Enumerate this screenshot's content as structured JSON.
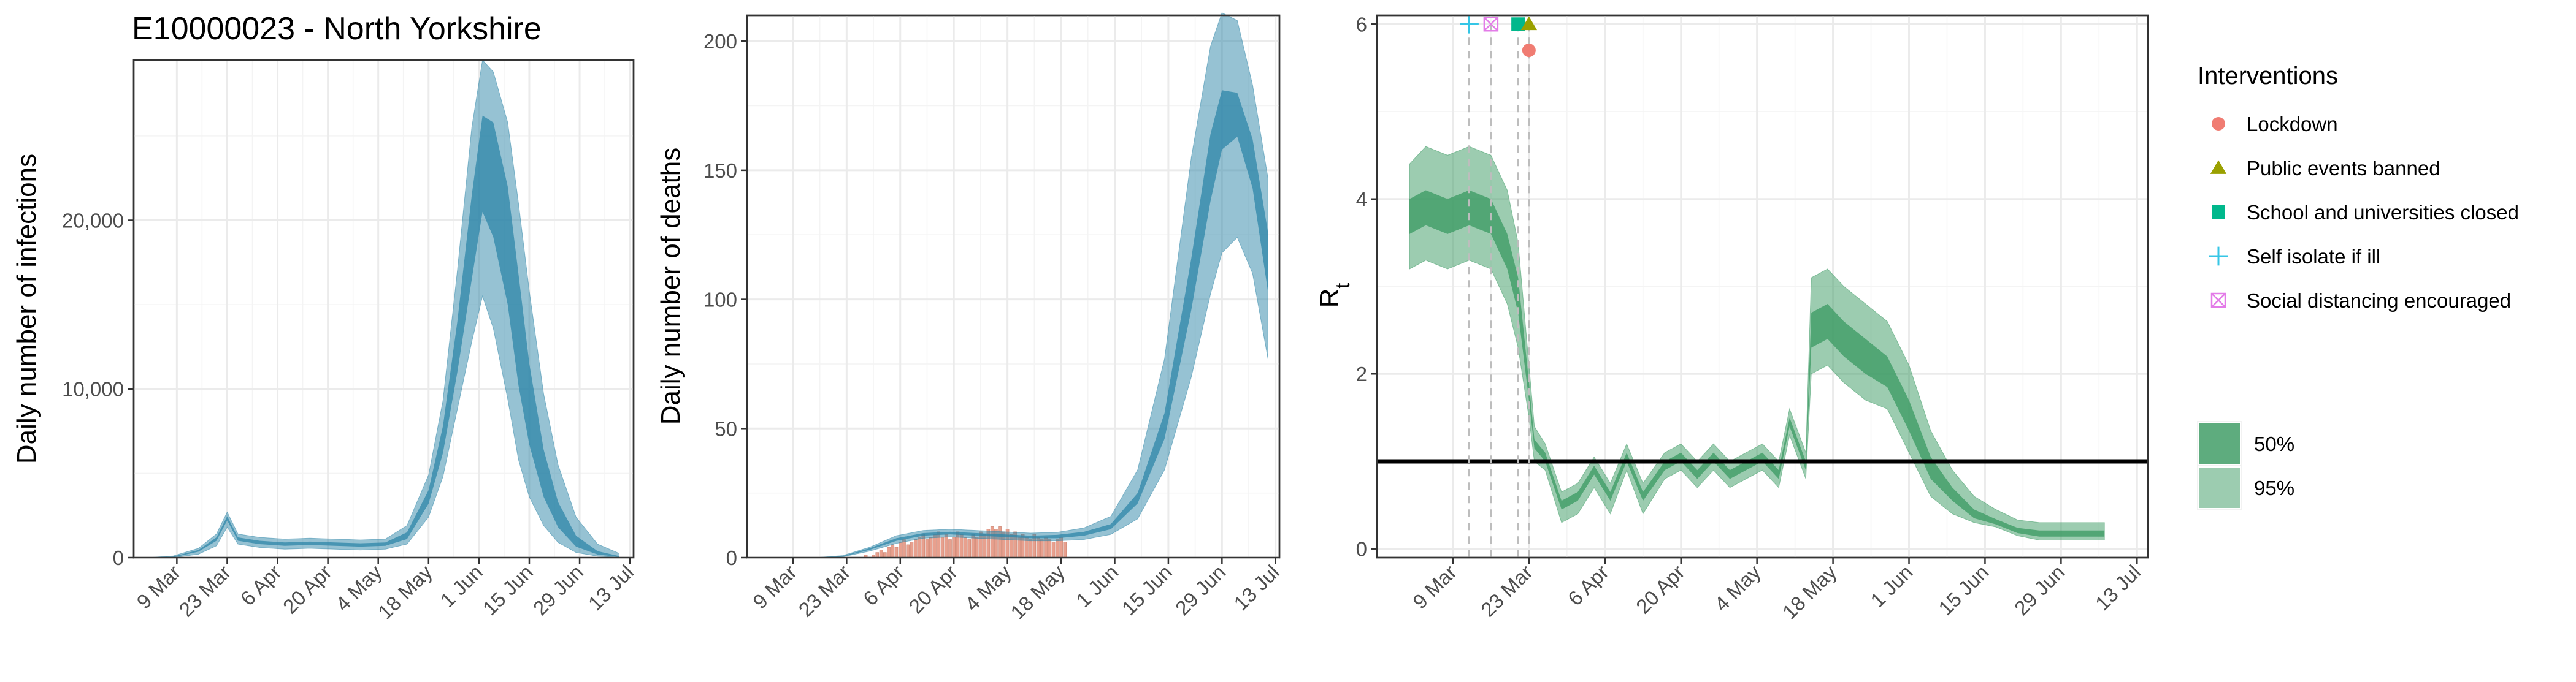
{
  "title": "E10000023 - North Yorkshire",
  "colors": {
    "infection_band": "#2e86a8",
    "rt_band": "#3a9a62",
    "reported_deaths": "#e8a08e",
    "threshold_line": "#000000",
    "marker_lockdown": "#f07c72",
    "marker_public_events": "#9aa000",
    "marker_school": "#00b88c",
    "marker_self_isolate": "#35c6e6",
    "marker_social_distancing": "#e37ce8"
  },
  "chart_data": [
    {
      "id": "infections",
      "type": "area",
      "title": "E10000023 - North Yorkshire",
      "xlabel": "",
      "ylabel": "Daily number of infections",
      "x_tick_labels": [
        "9 Mar",
        "23 Mar",
        "6 Apr",
        "20 Apr",
        "4 May",
        "18 May",
        "1 Jun",
        "15 Jun",
        "29 Jun",
        "13 Jul"
      ],
      "x_tick_dates": [
        "2020-03-09",
        "2020-03-23",
        "2020-04-06",
        "2020-04-20",
        "2020-05-04",
        "2020-05-18",
        "2020-06-01",
        "2020-06-15",
        "2020-06-29",
        "2020-07-13"
      ],
      "xlim": [
        "2020-02-26",
        "2020-07-14"
      ],
      "y_tick_labels": [
        "0",
        "10,000",
        "20,000"
      ],
      "y_tick_values": [
        0,
        10000,
        20000
      ],
      "ylim": [
        0,
        29500
      ],
      "grid": true,
      "series": [
        {
          "bands": [
            "50%",
            "95%"
          ],
          "x": [
            "2020-03-01",
            "2020-03-08",
            "2020-03-15",
            "2020-03-20",
            "2020-03-23",
            "2020-03-26",
            "2020-04-01",
            "2020-04-08",
            "2020-04-15",
            "2020-04-22",
            "2020-04-29",
            "2020-05-06",
            "2020-05-12",
            "2020-05-18",
            "2020-05-22",
            "2020-05-26",
            "2020-05-30",
            "2020-06-02",
            "2020-06-05",
            "2020-06-09",
            "2020-06-12",
            "2020-06-15",
            "2020-06-19",
            "2020-06-23",
            "2020-06-28",
            "2020-07-04",
            "2020-07-10"
          ],
          "lower95": [
            0,
            0,
            200,
            700,
            1800,
            800,
            600,
            500,
            550,
            500,
            450,
            500,
            800,
            2400,
            4800,
            8800,
            12800,
            15500,
            13600,
            9400,
            5800,
            3600,
            1900,
            900,
            300,
            80,
            20
          ],
          "lower50": [
            0,
            20,
            350,
            1000,
            2200,
            1000,
            800,
            700,
            750,
            700,
            650,
            700,
            1100,
            3200,
            6200,
            11000,
            16500,
            20500,
            19000,
            15000,
            10200,
            6700,
            3600,
            1800,
            650,
            180,
            40
          ],
          "median": [
            0,
            40,
            400,
            1100,
            2300,
            1100,
            900,
            800,
            850,
            800,
            750,
            800,
            1300,
            3600,
            7000,
            12500,
            19000,
            23500,
            22500,
            18500,
            13200,
            8800,
            4800,
            2400,
            900,
            250,
            60
          ],
          "upper50": [
            0,
            60,
            450,
            1200,
            2450,
            1200,
            1000,
            900,
            950,
            900,
            850,
            900,
            1500,
            4000,
            7800,
            14000,
            21500,
            26200,
            25800,
            22000,
            16800,
            11500,
            6400,
            3300,
            1300,
            380,
            90
          ],
          "upper95": [
            0,
            100,
            550,
            1400,
            2700,
            1400,
            1200,
            1100,
            1150,
            1100,
            1050,
            1100,
            1900,
            4900,
            9300,
            17000,
            25500,
            29500,
            28800,
            25800,
            21000,
            15800,
            9700,
            5500,
            2400,
            800,
            250
          ]
        }
      ]
    },
    {
      "id": "deaths",
      "type": "area",
      "title": "",
      "xlabel": "",
      "ylabel": "Daily number of deaths",
      "x_tick_labels": [
        "9 Mar",
        "23 Mar",
        "6 Apr",
        "20 Apr",
        "4 May",
        "18 May",
        "1 Jun",
        "15 Jun",
        "29 Jun",
        "13 Jul"
      ],
      "x_tick_dates": [
        "2020-03-09",
        "2020-03-23",
        "2020-04-06",
        "2020-04-20",
        "2020-05-04",
        "2020-05-18",
        "2020-06-01",
        "2020-06-15",
        "2020-06-29",
        "2020-07-13"
      ],
      "xlim": [
        "2020-02-26",
        "2020-07-14"
      ],
      "y_tick_labels": [
        "0",
        "50",
        "100",
        "150",
        "200"
      ],
      "y_tick_values": [
        0,
        50,
        100,
        150,
        200
      ],
      "ylim": [
        0,
        210
      ],
      "grid": true,
      "reported_deaths": {
        "start_date": "2020-03-27",
        "values": [
          0,
          1,
          0,
          1,
          2,
          3,
          2,
          4,
          5,
          4,
          6,
          7,
          5,
          6,
          7,
          8,
          9,
          7,
          8,
          9,
          10,
          8,
          9,
          7,
          8,
          10,
          9,
          8,
          7,
          9,
          8,
          10,
          9,
          11,
          12,
          11,
          12,
          10,
          11,
          9,
          10,
          8,
          9,
          8,
          7,
          9,
          8,
          7,
          8,
          7,
          6,
          7,
          8,
          6
        ]
      },
      "series": [
        {
          "bands": [
            "50%",
            "95%"
          ],
          "x": [
            "2020-03-15",
            "2020-03-22",
            "2020-03-29",
            "2020-04-05",
            "2020-04-12",
            "2020-04-19",
            "2020-04-26",
            "2020-05-03",
            "2020-05-10",
            "2020-05-17",
            "2020-05-24",
            "2020-05-31",
            "2020-06-07",
            "2020-06-14",
            "2020-06-21",
            "2020-06-26",
            "2020-06-29",
            "2020-07-03",
            "2020-07-07",
            "2020-07-11"
          ],
          "lower95": [
            0,
            0.3,
            2.5,
            5.5,
            7.5,
            8,
            7.5,
            7,
            6.5,
            6.5,
            7,
            9,
            15,
            34,
            70,
            102,
            118,
            124,
            110,
            77
          ],
          "lower50": [
            0,
            0.4,
            3,
            6.5,
            8.5,
            9,
            8.5,
            8,
            7.5,
            7.5,
            8.5,
            11,
            21,
            46,
            96,
            138,
            158,
            163,
            143,
            103
          ],
          "median": [
            0,
            0.5,
            3.3,
            7,
            9,
            9.5,
            9,
            8.5,
            8,
            8.2,
            9.2,
            12,
            23,
            51,
            106,
            152,
            173,
            175,
            158,
            115
          ],
          "upper50": [
            0,
            0.6,
            3.6,
            7.5,
            9.5,
            10,
            9.5,
            9,
            8.5,
            8.8,
            10,
            13,
            25,
            56,
            116,
            164,
            181,
            180,
            162,
            126
          ],
          "upper95": [
            0,
            0.8,
            4,
            8.5,
            10.5,
            11,
            10.5,
            10,
            9.5,
            9.8,
            11.5,
            16,
            34,
            77,
            155,
            198,
            211,
            208,
            183,
            147
          ]
        }
      ]
    },
    {
      "id": "rt",
      "type": "area",
      "title": "",
      "xlabel": "",
      "ylabel": "Rt",
      "ylabel_main": "R",
      "ylabel_sub": "t",
      "x_tick_labels": [
        "9 Mar",
        "23 Mar",
        "6 Apr",
        "20 Apr",
        "4 May",
        "18 May",
        "1 Jun",
        "15 Jun",
        "29 Jun",
        "13 Jul"
      ],
      "x_tick_dates": [
        "2020-03-09",
        "2020-03-23",
        "2020-04-06",
        "2020-04-20",
        "2020-05-04",
        "2020-05-18",
        "2020-06-01",
        "2020-06-15",
        "2020-06-29",
        "2020-07-13"
      ],
      "xlim": [
        "2020-02-24",
        "2020-07-15"
      ],
      "y_tick_labels": [
        "0",
        "2",
        "4",
        "6"
      ],
      "y_tick_values": [
        0,
        2,
        4,
        6
      ],
      "ylim": [
        -0.1,
        6.1
      ],
      "grid": true,
      "reference_line": 1,
      "interventions": [
        {
          "name": "Self isolate if ill",
          "date": "2020-03-12",
          "symbol": "plus",
          "y": 6
        },
        {
          "name": "Social distancing encouraged",
          "date": "2020-03-16",
          "symbol": "boxx",
          "y": 6
        },
        {
          "name": "School and universities closed",
          "date": "2020-03-21",
          "symbol": "square",
          "y": 6
        },
        {
          "name": "Public events banned",
          "date": "2020-03-23",
          "symbol": "triangle",
          "y": 6
        },
        {
          "name": "Lockdown",
          "date": "2020-03-23",
          "symbol": "circle",
          "y": 5.7
        }
      ],
      "series": [
        {
          "bands": [
            "50%",
            "95%"
          ],
          "x": [
            "2020-03-01",
            "2020-03-04",
            "2020-03-08",
            "2020-03-12",
            "2020-03-16",
            "2020-03-19",
            "2020-03-21",
            "2020-03-23",
            "2020-03-24",
            "2020-03-26",
            "2020-03-29",
            "2020-04-01",
            "2020-04-04",
            "2020-04-07",
            "2020-04-10",
            "2020-04-13",
            "2020-04-17",
            "2020-04-20",
            "2020-04-23",
            "2020-04-26",
            "2020-04-29",
            "2020-05-02",
            "2020-05-05",
            "2020-05-08",
            "2020-05-10",
            "2020-05-13",
            "2020-05-14",
            "2020-05-17",
            "2020-05-20",
            "2020-05-24",
            "2020-05-28",
            "2020-06-01",
            "2020-06-05",
            "2020-06-09",
            "2020-06-13",
            "2020-06-17",
            "2020-06-21",
            "2020-06-25",
            "2020-06-29",
            "2020-07-03",
            "2020-07-07"
          ],
          "lower95": [
            3.2,
            3.3,
            3.2,
            3.3,
            3.2,
            2.8,
            2.3,
            1.5,
            1.0,
            0.9,
            0.3,
            0.4,
            0.7,
            0.4,
            0.9,
            0.4,
            0.8,
            0.9,
            0.7,
            0.9,
            0.7,
            0.8,
            0.9,
            0.7,
            1.3,
            0.8,
            2.0,
            2.1,
            1.9,
            1.7,
            1.6,
            1.1,
            0.6,
            0.4,
            0.3,
            0.25,
            0.15,
            0.1,
            0.1,
            0.1,
            0.1
          ],
          "lower50": [
            3.6,
            3.7,
            3.6,
            3.7,
            3.6,
            3.2,
            2.7,
            1.7,
            1.15,
            1.0,
            0.45,
            0.55,
            0.85,
            0.55,
            1.0,
            0.55,
            0.9,
            1.0,
            0.8,
            1.0,
            0.8,
            0.9,
            1.0,
            0.8,
            1.4,
            0.9,
            2.3,
            2.4,
            2.2,
            2.0,
            1.85,
            1.35,
            0.8,
            0.55,
            0.35,
            0.28,
            0.18,
            0.14,
            0.14,
            0.14,
            0.14
          ],
          "median": [
            3.8,
            3.9,
            3.8,
            3.9,
            3.8,
            3.4,
            2.9,
            1.8,
            1.2,
            1.05,
            0.5,
            0.6,
            0.9,
            0.6,
            1.05,
            0.6,
            0.95,
            1.05,
            0.85,
            1.05,
            0.85,
            0.95,
            1.05,
            0.85,
            1.45,
            0.95,
            2.5,
            2.6,
            2.4,
            2.2,
            2.0,
            1.5,
            0.9,
            0.6,
            0.4,
            0.3,
            0.2,
            0.17,
            0.17,
            0.17,
            0.17
          ],
          "upper50": [
            4.0,
            4.1,
            4.0,
            4.1,
            4.0,
            3.6,
            3.1,
            1.9,
            1.25,
            1.1,
            0.55,
            0.65,
            0.95,
            0.65,
            1.1,
            0.65,
            1.0,
            1.1,
            0.9,
            1.1,
            0.9,
            1.0,
            1.1,
            0.9,
            1.5,
            1.0,
            2.7,
            2.8,
            2.6,
            2.4,
            2.2,
            1.7,
            1.05,
            0.7,
            0.45,
            0.34,
            0.24,
            0.21,
            0.21,
            0.21,
            0.21
          ],
          "upper95": [
            4.4,
            4.6,
            4.5,
            4.6,
            4.5,
            4.1,
            3.5,
            2.1,
            1.4,
            1.2,
            0.65,
            0.75,
            1.05,
            0.75,
            1.2,
            0.75,
            1.1,
            1.2,
            1.0,
            1.2,
            1.0,
            1.1,
            1.2,
            1.0,
            1.6,
            1.1,
            3.1,
            3.2,
            3.0,
            2.8,
            2.6,
            2.1,
            1.35,
            0.9,
            0.6,
            0.45,
            0.33,
            0.3,
            0.3,
            0.3,
            0.3
          ]
        }
      ]
    }
  ],
  "legend_interventions": {
    "title": "Interventions",
    "placement": "right",
    "items": [
      {
        "label": "Lockdown",
        "symbol": "circle"
      },
      {
        "label": "Public events banned",
        "symbol": "triangle"
      },
      {
        "label": "School and universities closed",
        "symbol": "square"
      },
      {
        "label": "Self isolate if ill",
        "symbol": "plus"
      },
      {
        "label": "Social distancing encouraged",
        "symbol": "boxx"
      }
    ]
  },
  "legend_ci": {
    "placement": "right",
    "items": [
      {
        "label": "50%"
      },
      {
        "label": "95%"
      }
    ]
  }
}
